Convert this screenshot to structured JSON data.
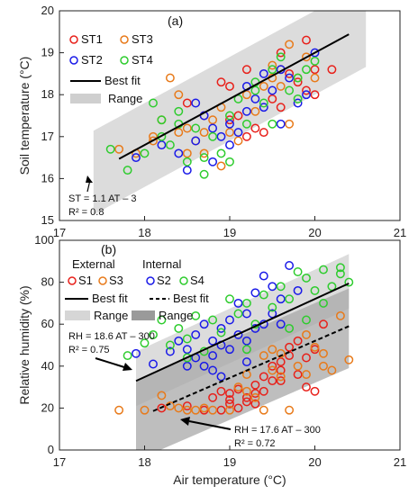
{
  "figure": {
    "xlabel": "Air temperature (°C)",
    "colors": {
      "ST1": "#e8201a",
      "ST2": "#1a1ae8",
      "ST3": "#e87a1a",
      "ST4": "#2ecc2e",
      "S1": "#e8201a",
      "S2": "#1a1ae8",
      "S3": "#e87a1a",
      "S4": "#2ecc2e"
    }
  },
  "chart_data": [
    {
      "type": "scatter",
      "panel_label": "(a)",
      "ylabel": "Soil temperature (°C)",
      "xlim": [
        17,
        21
      ],
      "ylim": [
        15,
        20
      ],
      "x_ticks": [
        "17",
        "18",
        "19",
        "20",
        "21"
      ],
      "y_ticks": [
        "15",
        "16",
        "17",
        "18",
        "19",
        "20"
      ],
      "legend": {
        "placement": "top-left",
        "items": [
          {
            "key": "ST1",
            "label": "ST1"
          },
          {
            "key": "ST3",
            "label": "ST3"
          },
          {
            "key": "ST2",
            "label": "ST2"
          },
          {
            "key": "ST4",
            "label": "ST4"
          }
        ],
        "fit_label": "Best fit",
        "range_label": "Range"
      },
      "fit": {
        "slope": 1.1,
        "intercept": -3,
        "x_range": [
          17.7,
          20.4
        ]
      },
      "range_band": {
        "x_range": [
          17.4,
          20.6
        ],
        "lower_offset": -1.0,
        "upper_offset": 1.0
      },
      "annotation": {
        "lines": [
          "ST = 1.1 AT – 3",
          "R² = 0.8"
        ]
      },
      "series": [
        {
          "name": "ST1",
          "points": [
            [
              18.9,
              18.3
            ],
            [
              19.0,
              18.2
            ],
            [
              19.2,
              17.0
            ],
            [
              19.3,
              17.2
            ],
            [
              19.4,
              17.1
            ],
            [
              19.5,
              17.9
            ],
            [
              19.6,
              17.7
            ],
            [
              19.7,
              18.5
            ],
            [
              19.8,
              18.3
            ],
            [
              19.9,
              19.3
            ],
            [
              20.0,
              18.6
            ],
            [
              20.2,
              18.6
            ],
            [
              18.5,
              17.8
            ],
            [
              18.7,
              17.5
            ],
            [
              19.1,
              17.5
            ],
            [
              19.9,
              18.1
            ],
            [
              20.0,
              18.0
            ],
            [
              19.2,
              18.6
            ],
            [
              19.6,
              19.0
            ],
            [
              19.0,
              17.4
            ]
          ]
        },
        {
          "name": "ST3",
          "points": [
            [
              17.7,
              16.7
            ],
            [
              17.9,
              16.6
            ],
            [
              18.1,
              16.9
            ],
            [
              18.2,
              17.4
            ],
            [
              18.3,
              18.4
            ],
            [
              18.4,
              17.1
            ],
            [
              18.5,
              16.6
            ],
            [
              18.5,
              17.2
            ],
            [
              18.6,
              16.9
            ],
            [
              18.7,
              17.1
            ],
            [
              18.7,
              16.6
            ],
            [
              18.8,
              17.4
            ],
            [
              18.9,
              17.7
            ],
            [
              19.1,
              16.9
            ],
            [
              19.2,
              18.0
            ],
            [
              19.3,
              17.6
            ],
            [
              19.4,
              18.2
            ],
            [
              19.5,
              18.7
            ],
            [
              19.6,
              18.2
            ],
            [
              19.6,
              18.6
            ],
            [
              19.7,
              19.2
            ],
            [
              19.8,
              18.4
            ],
            [
              19.9,
              18.9
            ],
            [
              18.4,
              18.0
            ],
            [
              18.9,
              16.3
            ],
            [
              19.7,
              17.3
            ],
            [
              20.0,
              18.4
            ],
            [
              18.1,
              17.0
            ],
            [
              19.0,
              17.1
            ],
            [
              19.5,
              18.4
            ]
          ]
        },
        {
          "name": "ST2",
          "points": [
            [
              17.9,
              16.5
            ],
            [
              18.2,
              16.8
            ],
            [
              18.4,
              16.6
            ],
            [
              18.5,
              16.2
            ],
            [
              18.6,
              16.9
            ],
            [
              18.7,
              17.5
            ],
            [
              18.8,
              17.2
            ],
            [
              18.8,
              16.4
            ],
            [
              18.9,
              17.0
            ],
            [
              19.0,
              17.3
            ],
            [
              19.0,
              16.8
            ],
            [
              19.1,
              17.1
            ],
            [
              19.2,
              17.6
            ],
            [
              19.3,
              17.9
            ],
            [
              19.4,
              17.7
            ],
            [
              19.5,
              18.1
            ],
            [
              19.6,
              17.3
            ],
            [
              19.6,
              18.6
            ],
            [
              19.7,
              18.4
            ],
            [
              19.8,
              17.8
            ],
            [
              19.9,
              18.0
            ],
            [
              20.0,
              19.0
            ],
            [
              19.2,
              18.2
            ],
            [
              18.6,
              17.8
            ],
            [
              19.4,
              18.5
            ]
          ]
        },
        {
          "name": "ST4",
          "points": [
            [
              17.6,
              16.7
            ],
            [
              17.8,
              16.2
            ],
            [
              18.0,
              16.6
            ],
            [
              18.1,
              17.8
            ],
            [
              18.2,
              17.0
            ],
            [
              18.3,
              16.8
            ],
            [
              18.4,
              17.6
            ],
            [
              18.5,
              16.4
            ],
            [
              18.6,
              17.2
            ],
            [
              18.7,
              16.5
            ],
            [
              18.8,
              17.0
            ],
            [
              18.9,
              16.6
            ],
            [
              19.0,
              17.5
            ],
            [
              19.1,
              17.9
            ],
            [
              19.2,
              17.3
            ],
            [
              19.3,
              18.1
            ],
            [
              19.4,
              17.8
            ],
            [
              19.5,
              18.6
            ],
            [
              19.6,
              18.9
            ],
            [
              19.7,
              18.1
            ],
            [
              19.8,
              18.4
            ],
            [
              19.9,
              18.6
            ],
            [
              20.0,
              18.8
            ],
            [
              18.2,
              17.4
            ],
            [
              18.7,
              16.1
            ],
            [
              19.0,
              16.4
            ],
            [
              19.5,
              17.3
            ],
            [
              19.8,
              17.9
            ],
            [
              18.4,
              17.3
            ],
            [
              19.3,
              18.3
            ]
          ]
        }
      ]
    },
    {
      "type": "scatter",
      "panel_label": "(b)",
      "ylabel": "Relative humidity (%)",
      "xlim": [
        17,
        21
      ],
      "ylim": [
        0,
        100
      ],
      "x_ticks": [
        "17",
        "18",
        "19",
        "20",
        "21"
      ],
      "y_ticks": [
        "0",
        "20",
        "40",
        "60",
        "80",
        "100"
      ],
      "legend": {
        "placement": "top-left",
        "external_label": "External",
        "internal_label": "Internal",
        "external_items": [
          {
            "key": "S1",
            "label": "S1"
          },
          {
            "key": "S3",
            "label": "S3"
          }
        ],
        "internal_items": [
          {
            "key": "S2",
            "label": "S2"
          },
          {
            "key": "S4",
            "label": "S4"
          }
        ],
        "fit_label": "Best fit",
        "range_label": "Range"
      },
      "fits": [
        {
          "group": "internal",
          "slope": 18.6,
          "intercept": -300,
          "x_range": [
            17.9,
            20.4
          ],
          "style": "solid"
        },
        {
          "group": "external",
          "slope": 17.6,
          "intercept": -300,
          "x_range": [
            18.1,
            20.4
          ],
          "style": "dashed"
        }
      ],
      "range_bands": [
        {
          "group": "internal",
          "x_range": [
            17.9,
            20.4
          ],
          "lower_offset": -12,
          "upper_offset": 14,
          "shade": "light"
        },
        {
          "group": "external",
          "x_range": [
            17.9,
            20.4
          ],
          "lower_offset": -20,
          "upper_offset": 18,
          "shade": "dark"
        }
      ],
      "annotations": [
        {
          "lines": [
            "RH = 18.6 AT – 300",
            "R² = 0.75"
          ]
        },
        {
          "lines": [
            "RH = 17.6 AT – 300",
            "R² = 0.72"
          ]
        }
      ],
      "series": [
        {
          "name": "S1",
          "points": [
            [
              18.2,
              20
            ],
            [
              18.5,
              21
            ],
            [
              18.7,
              19
            ],
            [
              18.8,
              25
            ],
            [
              18.9,
              19
            ],
            [
              19.0,
              22
            ],
            [
              19.0,
              27
            ],
            [
              19.1,
              20
            ],
            [
              19.1,
              29
            ],
            [
              19.2,
              23
            ],
            [
              19.2,
              25
            ],
            [
              19.3,
              27
            ],
            [
              19.3,
              31
            ],
            [
              19.4,
              28
            ],
            [
              19.4,
              35
            ],
            [
              19.5,
              33
            ],
            [
              19.5,
              40
            ],
            [
              19.6,
              38
            ],
            [
              19.6,
              42
            ],
            [
              19.7,
              45
            ],
            [
              19.7,
              49
            ],
            [
              19.8,
              36
            ],
            [
              19.8,
              52
            ],
            [
              19.9,
              44
            ],
            [
              19.9,
              30
            ],
            [
              20.0,
              28
            ],
            [
              20.0,
              48
            ],
            [
              20.1,
              60
            ],
            [
              19.0,
              24
            ],
            [
              19.3,
              22
            ],
            [
              19.6,
              33
            ],
            [
              18.9,
              28
            ]
          ]
        },
        {
          "name": "S3",
          "points": [
            [
              17.7,
              19
            ],
            [
              18.0,
              19
            ],
            [
              18.2,
              26
            ],
            [
              18.4,
              20
            ],
            [
              18.5,
              19
            ],
            [
              18.6,
              19
            ],
            [
              18.8,
              19
            ],
            [
              19.0,
              19
            ],
            [
              19.1,
              30
            ],
            [
              19.2,
              28
            ],
            [
              19.3,
              25
            ],
            [
              19.4,
              45
            ],
            [
              19.5,
              38
            ],
            [
              19.5,
              48
            ],
            [
              19.6,
              35
            ],
            [
              19.7,
              19
            ],
            [
              19.8,
              40
            ],
            [
              19.9,
              55
            ],
            [
              20.0,
              49
            ],
            [
              20.1,
              46
            ],
            [
              20.2,
              38
            ],
            [
              20.3,
              64
            ],
            [
              20.4,
              43
            ],
            [
              18.3,
              21
            ],
            [
              18.7,
              20
            ],
            [
              19.2,
              36
            ],
            [
              19.6,
              46
            ],
            [
              19.9,
              36
            ],
            [
              20.1,
              40
            ],
            [
              19.4,
              19
            ]
          ]
        },
        {
          "name": "S2",
          "points": [
            [
              17.9,
              46
            ],
            [
              18.1,
              41
            ],
            [
              18.3,
              47
            ],
            [
              18.4,
              52
            ],
            [
              18.5,
              48
            ],
            [
              18.6,
              55
            ],
            [
              18.6,
              44
            ],
            [
              18.7,
              60
            ],
            [
              18.7,
              40
            ],
            [
              18.8,
              52
            ],
            [
              18.8,
              45
            ],
            [
              18.9,
              58
            ],
            [
              18.9,
              50
            ],
            [
              19.0,
              62
            ],
            [
              19.0,
              48
            ],
            [
              19.1,
              55
            ],
            [
              19.1,
              70
            ],
            [
              19.2,
              65
            ],
            [
              19.2,
              52
            ],
            [
              19.3,
              75
            ],
            [
              19.3,
              58
            ],
            [
              19.4,
              83
            ],
            [
              19.4,
              60
            ],
            [
              19.5,
              78
            ],
            [
              19.5,
              65
            ],
            [
              19.6,
              72
            ],
            [
              19.7,
              88
            ],
            [
              19.8,
              76
            ],
            [
              18.5,
              40
            ],
            [
              18.9,
              35
            ],
            [
              19.2,
              42
            ],
            [
              19.6,
              60
            ],
            [
              18.8,
              38
            ]
          ]
        },
        {
          "name": "S4",
          "points": [
            [
              17.8,
              45
            ],
            [
              18.0,
              51
            ],
            [
              18.1,
              55
            ],
            [
              18.2,
              62
            ],
            [
              18.3,
              50
            ],
            [
              18.4,
              58
            ],
            [
              18.5,
              53
            ],
            [
              18.6,
              64
            ],
            [
              18.7,
              47
            ],
            [
              18.8,
              62
            ],
            [
              18.9,
              56
            ],
            [
              19.0,
              72
            ],
            [
              19.1,
              65
            ],
            [
              19.2,
              70
            ],
            [
              19.3,
              60
            ],
            [
              19.4,
              74
            ],
            [
              19.5,
              68
            ],
            [
              19.6,
              78
            ],
            [
              19.7,
              72
            ],
            [
              19.8,
              85
            ],
            [
              19.9,
              82
            ],
            [
              20.0,
              76
            ],
            [
              20.1,
              86
            ],
            [
              20.2,
              78
            ],
            [
              20.3,
              84
            ],
            [
              20.4,
              80
            ],
            [
              20.3,
              87
            ],
            [
              19.7,
              58
            ],
            [
              19.2,
              48
            ],
            [
              18.5,
              44
            ],
            [
              20.1,
              70
            ],
            [
              19.9,
              62
            ]
          ]
        }
      ]
    }
  ]
}
